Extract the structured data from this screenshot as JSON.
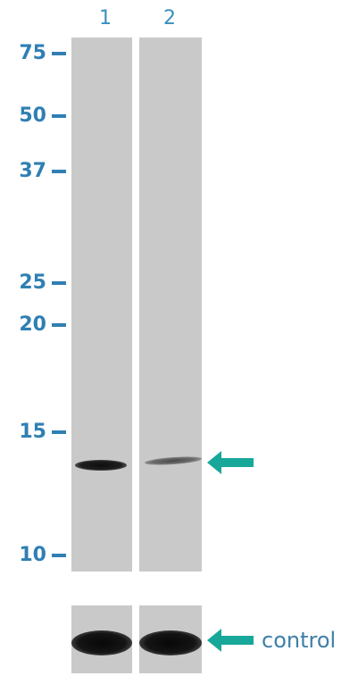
{
  "lanes": [
    {
      "label": "1"
    },
    {
      "label": "2"
    }
  ],
  "markers": [
    {
      "label": "75"
    },
    {
      "label": "50"
    },
    {
      "label": "37"
    },
    {
      "label": "25"
    },
    {
      "label": "20"
    },
    {
      "label": "15"
    },
    {
      "label": "10"
    }
  ],
  "control_label": "control",
  "colors": {
    "marker_text": "#2f7fb3",
    "arrow": "#17a89a",
    "lane_background": "#c9c9c9",
    "band": "#1a1a1a"
  }
}
